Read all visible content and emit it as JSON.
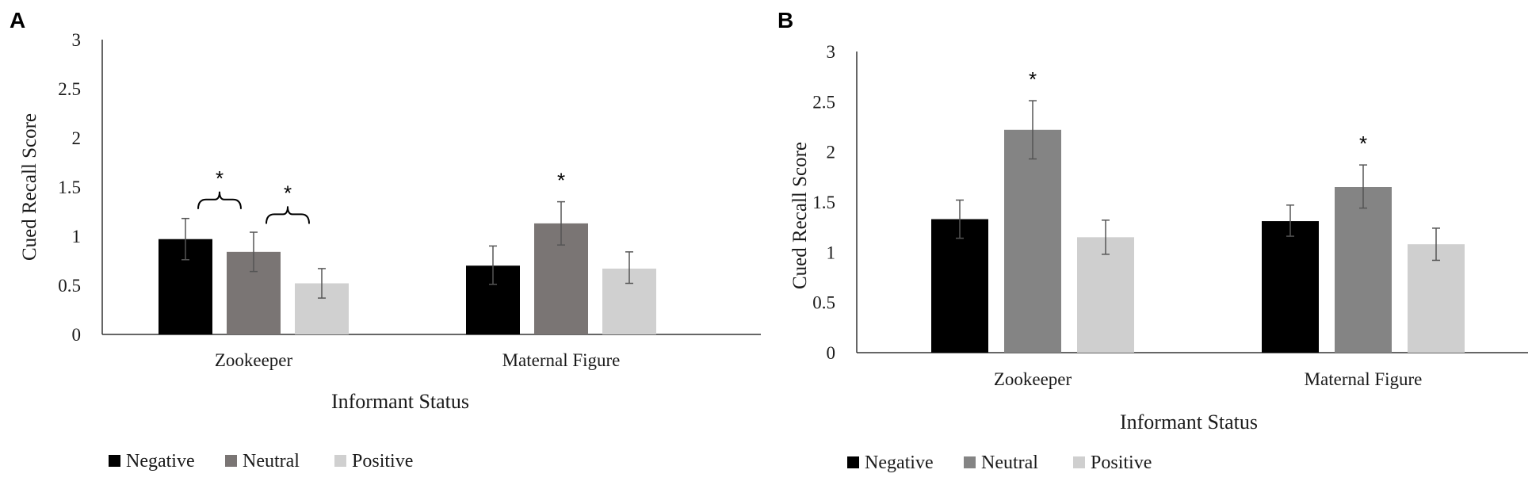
{
  "panels": [
    {
      "letter": "A",
      "chart_data": {
        "type": "bar",
        "title": "",
        "xlabel": "Informant Status",
        "ylabel": "Cued Recall Score",
        "ylim": [
          0,
          3
        ],
        "yticks": [
          "0",
          "0.5",
          "1",
          "1.5",
          "2",
          "2.5",
          "3"
        ],
        "categories": [
          "Zookeeper",
          "Maternal Figure"
        ],
        "series": [
          {
            "name": "Negative",
            "color": "#000000",
            "values": [
              0.97,
              0.7
            ],
            "err_low": [
              0.76,
              0.51
            ],
            "err_high": [
              1.18,
              0.9
            ]
          },
          {
            "name": "Neutral",
            "color": "#7a7574",
            "values": [
              0.84,
              1.13
            ],
            "err_low": [
              0.64,
              0.91
            ],
            "err_high": [
              1.04,
              1.35
            ]
          },
          {
            "name": "Positive",
            "color": "#d0d0d0",
            "values": [
              0.52,
              0.67
            ],
            "err_low": [
              0.37,
              0.52
            ],
            "err_high": [
              0.67,
              0.84
            ]
          }
        ],
        "annotations": [
          {
            "text": "*",
            "kind": "bracket",
            "category": 0,
            "from_series": 0,
            "to_series": 1,
            "at_value": 1.55
          },
          {
            "text": "*",
            "kind": "bracket",
            "category": 0,
            "from_series": 1,
            "to_series": 2,
            "at_value": 1.4
          },
          {
            "text": "*",
            "kind": "star",
            "category": 1,
            "series": 1
          }
        ],
        "legend_position": "bottom-left"
      }
    },
    {
      "letter": "B",
      "chart_data": {
        "type": "bar",
        "title": "",
        "xlabel": "Informant Status",
        "ylabel": "Cued Recall Score",
        "ylim": [
          0,
          3
        ],
        "yticks": [
          "0",
          "0.5",
          "1",
          "1.5",
          "2",
          "2.5",
          "3"
        ],
        "categories": [
          "Zookeeper",
          "Maternal Figure"
        ],
        "series": [
          {
            "name": "Negative",
            "color": "#000000",
            "values": [
              1.33,
              1.31
            ],
            "err_low": [
              1.14,
              1.16
            ],
            "err_high": [
              1.52,
              1.47
            ]
          },
          {
            "name": "Neutral",
            "color": "#848484",
            "values": [
              2.22,
              1.65
            ],
            "err_low": [
              1.93,
              1.44
            ],
            "err_high": [
              2.51,
              1.87
            ]
          },
          {
            "name": "Positive",
            "color": "#cfcfcf",
            "values": [
              1.15,
              1.08
            ],
            "err_low": [
              0.98,
              0.92
            ],
            "err_high": [
              1.32,
              1.24
            ]
          }
        ],
        "annotations": [
          {
            "text": "*",
            "kind": "star",
            "category": 0,
            "series": 1
          },
          {
            "text": "*",
            "kind": "star",
            "category": 1,
            "series": 1
          }
        ],
        "legend_position": "bottom-left"
      }
    }
  ]
}
